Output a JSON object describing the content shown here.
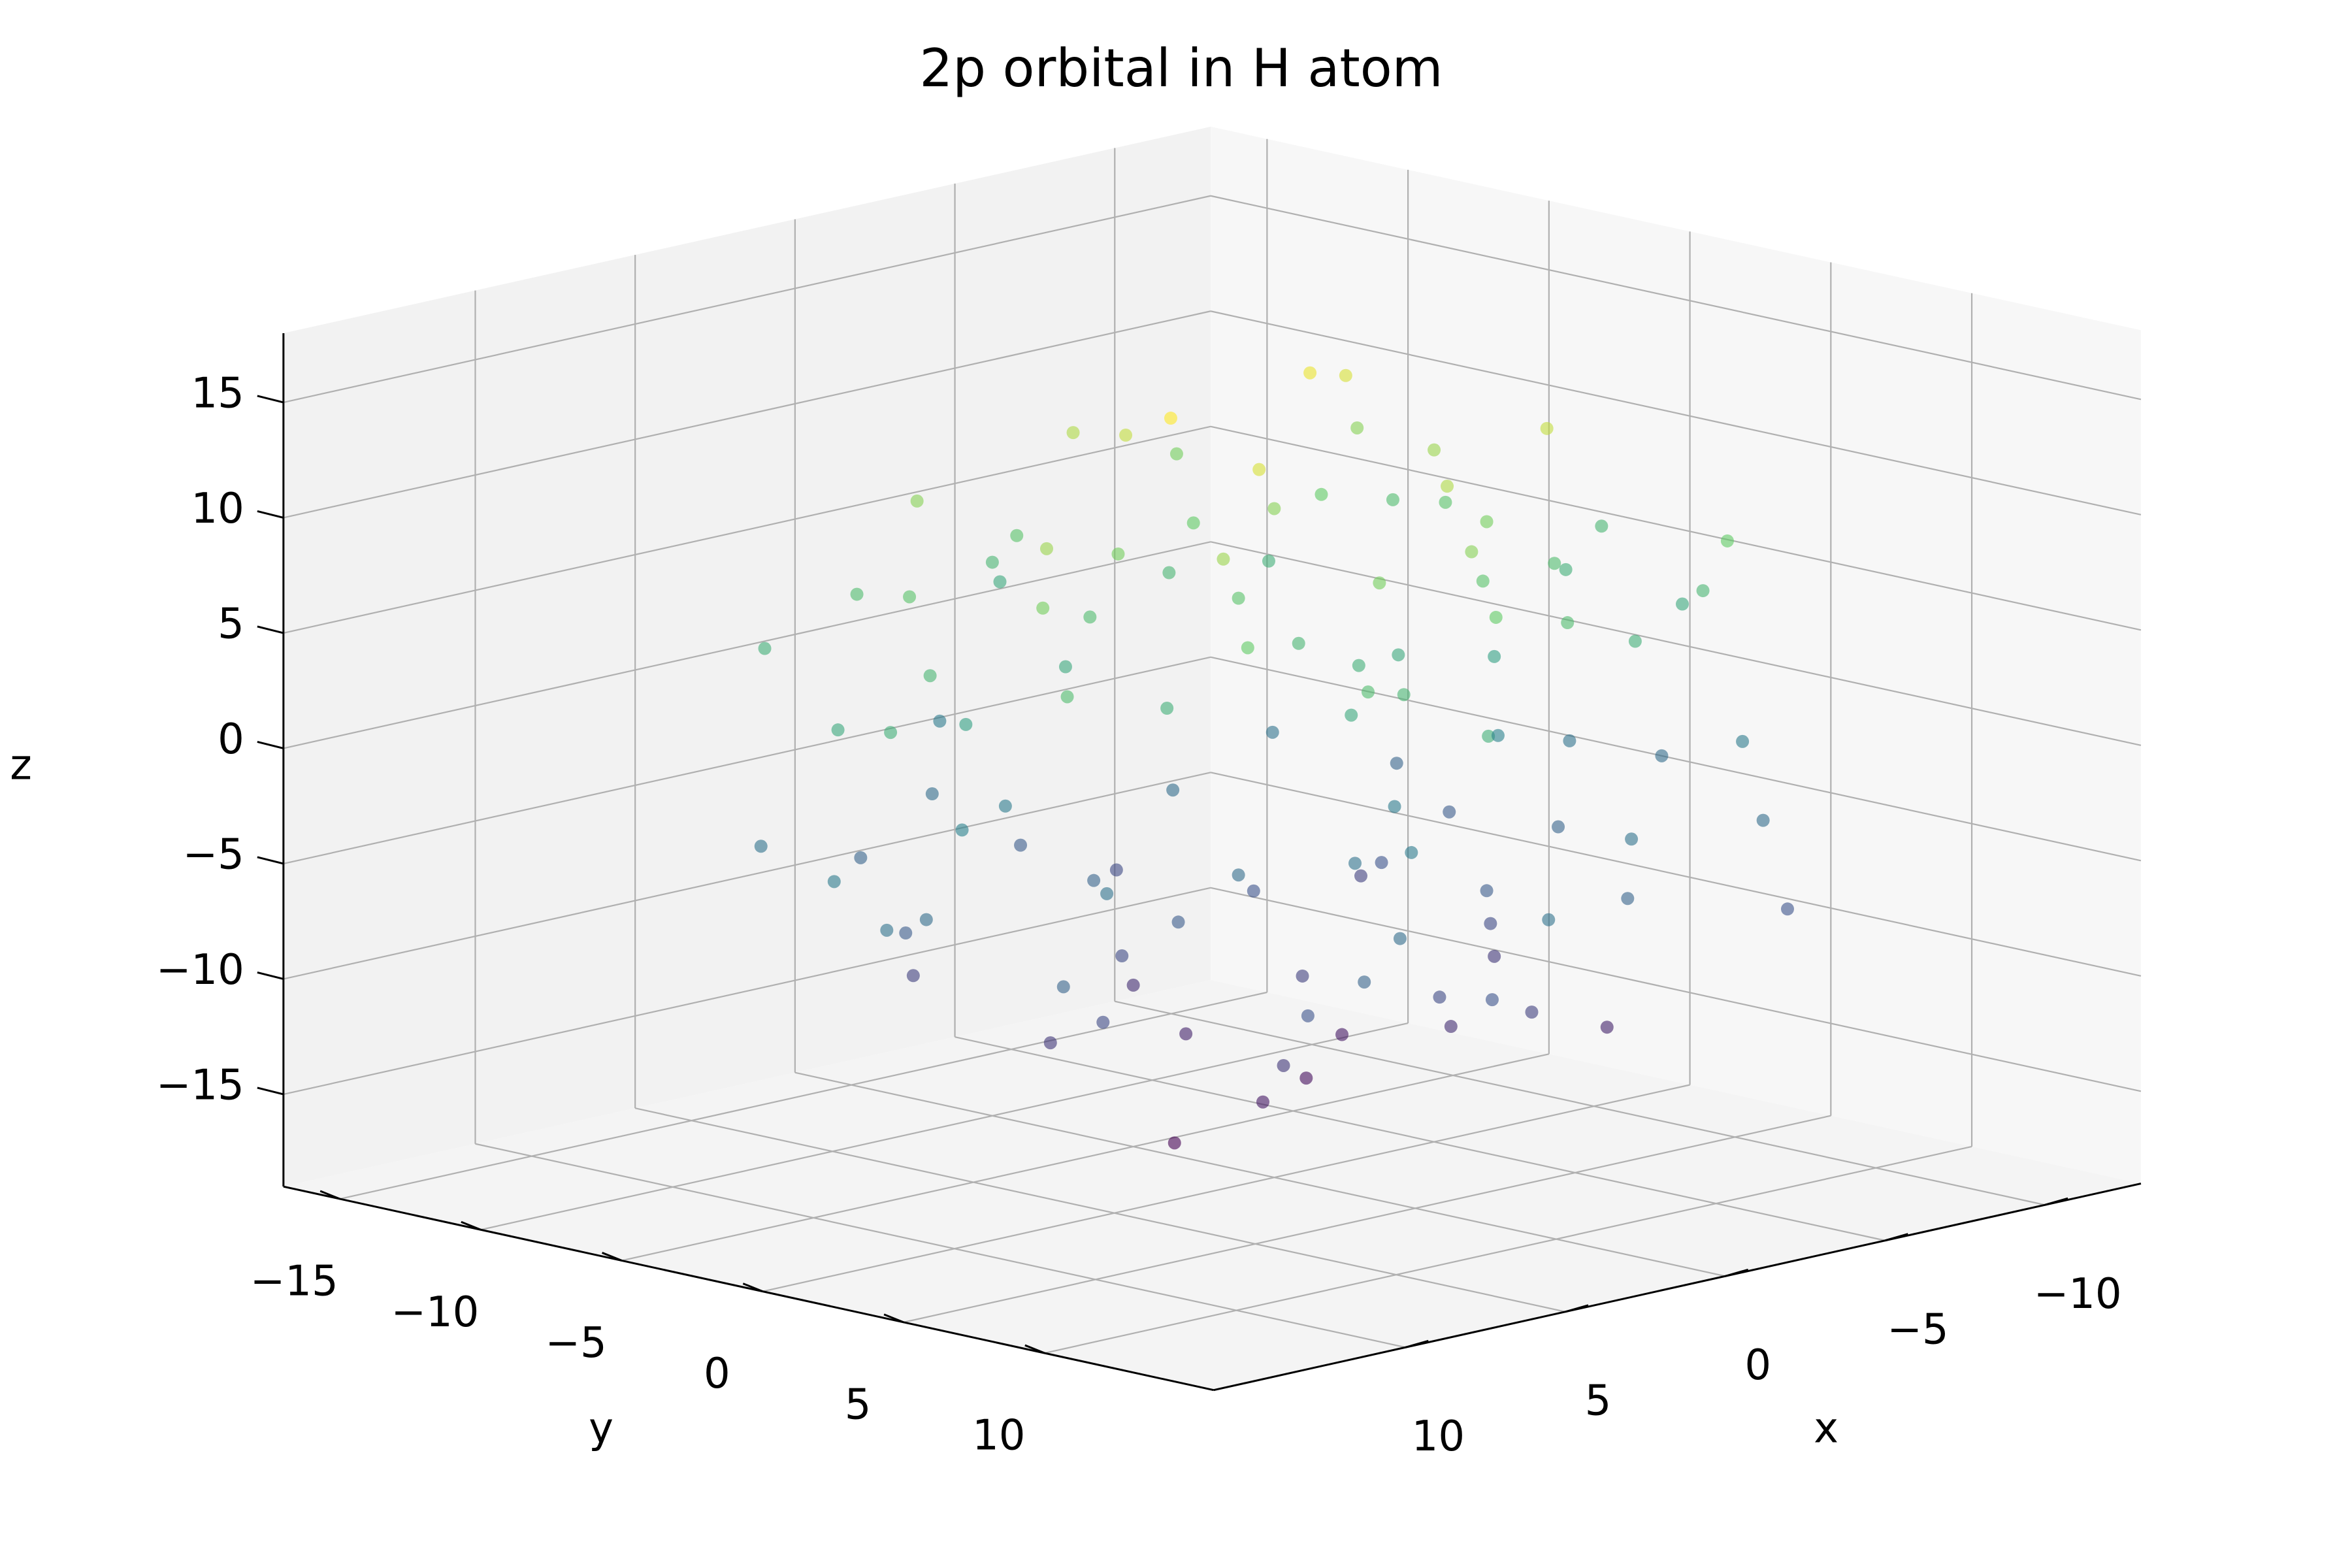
{
  "chart_data": {
    "type": "scatter3d",
    "title": "2p orbital in H atom",
    "xlabel": "x",
    "ylabel": "y",
    "zlabel": "z",
    "colormap": "viridis",
    "alpha": 0.6,
    "xlim": [
      -13,
      16
    ],
    "ylim": [
      -17,
      16
    ],
    "zlim": [
      -19,
      18
    ],
    "xticks": [
      {
        "value": -10,
        "label": "−10"
      },
      {
        "value": -5,
        "label": "−5"
      },
      0,
      5,
      10
    ],
    "yticks": [
      {
        "value": -15,
        "label": "−15"
      },
      {
        "value": -10,
        "label": "−10"
      },
      {
        "value": -5,
        "label": "−5"
      },
      0,
      5,
      10
    ],
    "zticks": [
      {
        "value": -15,
        "label": "−15"
      },
      {
        "value": -10,
        "label": "−10"
      },
      {
        "value": -5,
        "label": "−5"
      },
      0,
      5,
      10,
      15
    ],
    "grid": true,
    "x": [
      1,
      -3,
      4,
      -5,
      2,
      6,
      -2,
      0,
      7,
      -7,
      3,
      -4,
      8,
      -1,
      5,
      -6,
      2,
      -3,
      9,
      -8,
      1,
      4,
      -5,
      6,
      -2,
      0,
      10,
      -9,
      3,
      -4,
      7,
      -6,
      1,
      5,
      -3,
      8,
      -10,
      2,
      -1,
      6,
      -7,
      0,
      3,
      -2,
      11,
      -11,
      4,
      -5,
      9,
      -8,
      1,
      -4,
      7,
      -6,
      2,
      5,
      -9,
      0,
      12,
      -12,
      2,
      -4,
      3,
      -6,
      1,
      7,
      -3,
      0,
      8,
      -8,
      4,
      -3,
      7,
      -2,
      6,
      -5,
      1,
      -2,
      10,
      -9,
      2,
      3,
      -6,
      5,
      -1,
      1,
      11,
      -10,
      4,
      -5,
      6,
      -7,
      0,
      4,
      -4,
      9,
      -11,
      3,
      -2,
      5,
      -8,
      1,
      2,
      -1,
      12,
      -12,
      3,
      -6,
      8,
      -9,
      0,
      -3,
      8,
      -7,
      1,
      6,
      -10,
      -1,
      13,
      -13
    ],
    "y": [
      2,
      4,
      -2,
      -4,
      6,
      3,
      -6,
      0,
      -5,
      2,
      8,
      -8,
      1,
      5,
      -7,
      6,
      -3,
      1,
      -2,
      -3,
      9,
      4,
      0,
      -8,
      -1,
      -10,
      4,
      5,
      -4,
      3,
      7,
      -7,
      -6,
      2,
      7,
      -9,
      -1,
      1,
      -4,
      5,
      -5,
      3,
      11,
      -12,
      -3,
      2,
      -1,
      4,
      2,
      7,
      -8,
      -2,
      -3,
      1,
      5,
      9,
      -6,
      7,
      0,
      -2,
      1,
      3,
      -3,
      -3,
      7,
      2,
      -7,
      1,
      -4,
      1,
      9,
      -9,
      0,
      4,
      -6,
      7,
      -2,
      2,
      -1,
      -4,
      10,
      3,
      1,
      -9,
      0,
      -11,
      5,
      6,
      -5,
      2,
      8,
      -8,
      -5,
      1,
      8,
      -8,
      -2,
      0,
      -3,
      6,
      -6,
      4,
      12,
      -13,
      -2,
      3,
      -2,
      5,
      3,
      8,
      -9,
      -1,
      -2,
      0,
      6,
      10,
      -7,
      8,
      1,
      -1
    ],
    "z": [
      5,
      7,
      6,
      8,
      9,
      4,
      5,
      10,
      7,
      6,
      5,
      9,
      11,
      12,
      10,
      4,
      13,
      3,
      5,
      7,
      8,
      14,
      11,
      6,
      15,
      5,
      6,
      5,
      3,
      9,
      8,
      4,
      12,
      16,
      6,
      4,
      4,
      7,
      8,
      11,
      10,
      4,
      4,
      3,
      3,
      3,
      9,
      13,
      9,
      8,
      7,
      14,
      2,
      2,
      3,
      6,
      6,
      10,
      4,
      5,
      -5,
      -7,
      -6,
      -8,
      -9,
      -4,
      -5,
      -10,
      -7,
      -6,
      -5,
      -9,
      -11,
      -12,
      -10,
      -4,
      -13,
      -3,
      -5,
      -7,
      -8,
      -14,
      -11,
      -6,
      -15,
      -5,
      -6,
      -5,
      -3,
      -9,
      -8,
      -4,
      -12,
      -16,
      -6,
      -4,
      -4,
      -7,
      -8,
      -11,
      -10,
      -4,
      -4,
      -3,
      -3,
      -3,
      -9,
      -13,
      -9,
      -8,
      -7,
      -14,
      -2,
      -2,
      -3,
      -6,
      -6,
      -10,
      -4,
      -5
    ]
  }
}
